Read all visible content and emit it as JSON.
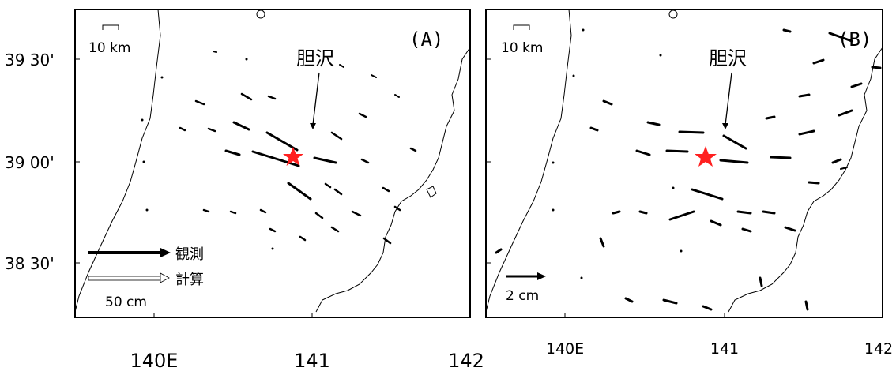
{
  "y_axis": {
    "ticks": [
      "39 30'",
      "39 00'",
      "38 30'"
    ]
  },
  "x_axis_left": {
    "ticks": [
      "140E",
      "141",
      "142"
    ]
  },
  "x_axis_right": {
    "ticks": [
      "140E",
      "141",
      "142"
    ]
  },
  "panels": [
    {
      "label": "(A)",
      "scale_bar_label": "10 km",
      "place_label": "胆沢",
      "legend": {
        "observed_label": "観測",
        "computed_label": "計算",
        "vector_scale_label": "50 cm"
      }
    },
    {
      "label": "(B)",
      "scale_bar_label": "10 km",
      "place_label": "胆沢",
      "legend": {
        "vector_scale_label": "2 cm"
      }
    }
  ],
  "colors": {
    "epicenter_star": "#ff2020",
    "vector": "#000000",
    "coastline": "#000000"
  }
}
